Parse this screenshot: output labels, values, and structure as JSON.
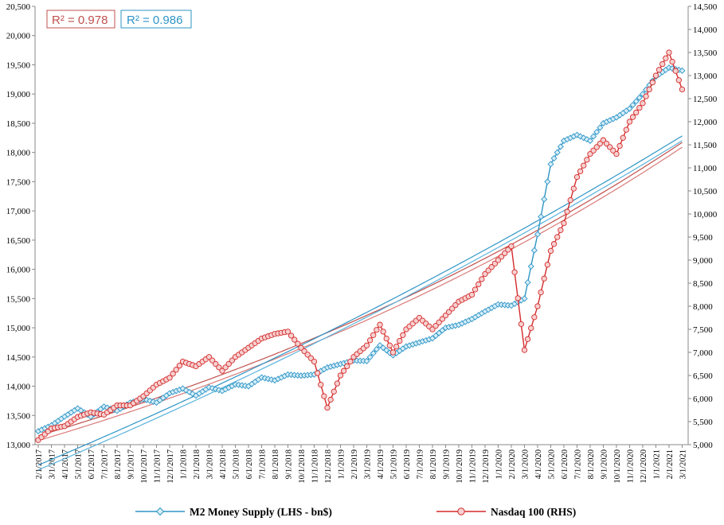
{
  "chart_data": {
    "type": "line",
    "title": "",
    "left_axis": {
      "ylim": [
        13000,
        20500
      ],
      "ticks": [
        "13,000",
        "13,500",
        "14,000",
        "14,500",
        "15,000",
        "15,500",
        "16,000",
        "16,500",
        "17,000",
        "17,500",
        "18,000",
        "18,500",
        "19,000",
        "19,500",
        "20,000",
        "20,500"
      ]
    },
    "right_axis": {
      "ylim": [
        5000,
        14500
      ],
      "ticks": [
        "5,000",
        "5,500",
        "6,000",
        "6,500",
        "7,000",
        "7,500",
        "8,000",
        "8,500",
        "9,000",
        "9,500",
        "10,000",
        "10,500",
        "11,000",
        "11,500",
        "12,000",
        "12,500",
        "13,000",
        "13,500",
        "14,000",
        "14,500"
      ]
    },
    "x_tick_labels": [
      "2/1/2017",
      "3/1/2017",
      "4/1/2017",
      "5/1/2017",
      "6/1/2017",
      "7/1/2017",
      "8/1/2017",
      "9/1/2017",
      "10/1/2017",
      "11/1/2017",
      "12/1/2017",
      "1/1/2018",
      "2/1/2018",
      "3/1/2018",
      "4/1/2018",
      "5/1/2018",
      "6/1/2018",
      "7/1/2018",
      "8/1/2018",
      "9/1/2018",
      "10/1/2018",
      "11/1/2018",
      "12/1/2018",
      "1/1/2019",
      "2/1/2019",
      "3/1/2019",
      "4/1/2019",
      "5/1/2019",
      "6/1/2019",
      "7/1/2019",
      "8/1/2019",
      "9/1/2019",
      "10/1/2019",
      "11/1/2019",
      "12/1/2019",
      "1/1/2020",
      "2/1/2020",
      "3/1/2020",
      "4/1/2020",
      "5/1/2020",
      "6/1/2020",
      "7/1/2020",
      "8/1/2020",
      "9/1/2020",
      "10/1/2020",
      "11/1/2020",
      "12/1/2020",
      "1/1/2021",
      "2/1/2021",
      "3/1/2021"
    ],
    "grid": false,
    "series": [
      {
        "name": "M2 Money Supply (LHS - bn$)",
        "axis": "left",
        "color": "#2e95c6",
        "marker": "diamond",
        "x": [
          "2017-02-01",
          "2017-03-01",
          "2017-04-01",
          "2017-05-01",
          "2017-06-01",
          "2017-07-01",
          "2017-08-01",
          "2017-09-01",
          "2017-10-01",
          "2017-11-01",
          "2017-12-01",
          "2018-01-01",
          "2018-02-01",
          "2018-03-01",
          "2018-04-01",
          "2018-05-01",
          "2018-06-01",
          "2018-07-01",
          "2018-08-01",
          "2018-09-01",
          "2018-10-01",
          "2018-11-01",
          "2018-12-01",
          "2019-01-01",
          "2019-02-01",
          "2019-03-01",
          "2019-04-01",
          "2019-05-01",
          "2019-06-01",
          "2019-07-01",
          "2019-08-01",
          "2019-09-01",
          "2019-10-01",
          "2019-11-01",
          "2019-12-01",
          "2020-01-01",
          "2020-02-01",
          "2020-03-01",
          "2020-04-01",
          "2020-05-01",
          "2020-06-01",
          "2020-07-01",
          "2020-08-01",
          "2020-09-01",
          "2020-10-01",
          "2020-11-01",
          "2020-12-01",
          "2021-01-01",
          "2021-02-01",
          "2021-03-01"
        ],
        "values": [
          13230,
          13330,
          13480,
          13620,
          13480,
          13650,
          13580,
          13720,
          13780,
          13720,
          13880,
          13960,
          13840,
          13980,
          13920,
          14030,
          14000,
          14150,
          14100,
          14200,
          14180,
          14200,
          14320,
          14380,
          14440,
          14430,
          14700,
          14530,
          14680,
          14750,
          14820,
          15000,
          15050,
          15150,
          15280,
          15400,
          15380,
          15500,
          16600,
          17800,
          18200,
          18300,
          18200,
          18500,
          18600,
          18750,
          19000,
          19300,
          19450,
          19400
        ]
      },
      {
        "name": "Nasdaq 100 (RHS)",
        "axis": "right",
        "color": "#d42a2a",
        "marker": "circle",
        "x": [
          "2017-02-01",
          "2017-03-01",
          "2017-04-01",
          "2017-05-01",
          "2017-06-01",
          "2017-07-01",
          "2017-08-01",
          "2017-09-01",
          "2017-10-01",
          "2017-11-01",
          "2017-12-01",
          "2018-01-01",
          "2018-02-01",
          "2018-03-01",
          "2018-04-01",
          "2018-05-01",
          "2018-06-01",
          "2018-07-01",
          "2018-08-01",
          "2018-09-01",
          "2018-10-01",
          "2018-11-01",
          "2018-12-01",
          "2019-01-01",
          "2019-02-01",
          "2019-03-01",
          "2019-04-01",
          "2019-05-01",
          "2019-06-01",
          "2019-07-01",
          "2019-08-01",
          "2019-09-01",
          "2019-10-01",
          "2019-11-01",
          "2019-12-01",
          "2020-01-01",
          "2020-02-01",
          "2020-03-01",
          "2020-04-01",
          "2020-05-01",
          "2020-06-01",
          "2020-07-01",
          "2020-08-01",
          "2020-09-01",
          "2020-10-01",
          "2020-11-01",
          "2020-12-01",
          "2021-01-01",
          "2021-02-01",
          "2021-03-01"
        ],
        "values": [
          5100,
          5350,
          5400,
          5600,
          5700,
          5650,
          5850,
          5850,
          6050,
          6300,
          6450,
          6800,
          6700,
          6900,
          6600,
          6900,
          7100,
          7300,
          7400,
          7450,
          7100,
          6800,
          5800,
          6500,
          6900,
          7150,
          7600,
          7000,
          7500,
          7750,
          7500,
          7800,
          8100,
          8250,
          8700,
          9000,
          9300,
          7050,
          8000,
          9200,
          9800,
          10800,
          11300,
          11600,
          11300,
          12000,
          12400,
          13000,
          13500,
          12700
        ]
      }
    ],
    "annotations": [
      {
        "text": "R² = 0.978",
        "color": "#c0504d"
      },
      {
        "text": "R² = 0.986",
        "color": "#2e95c6"
      }
    ],
    "legend_placement": "bottom"
  }
}
